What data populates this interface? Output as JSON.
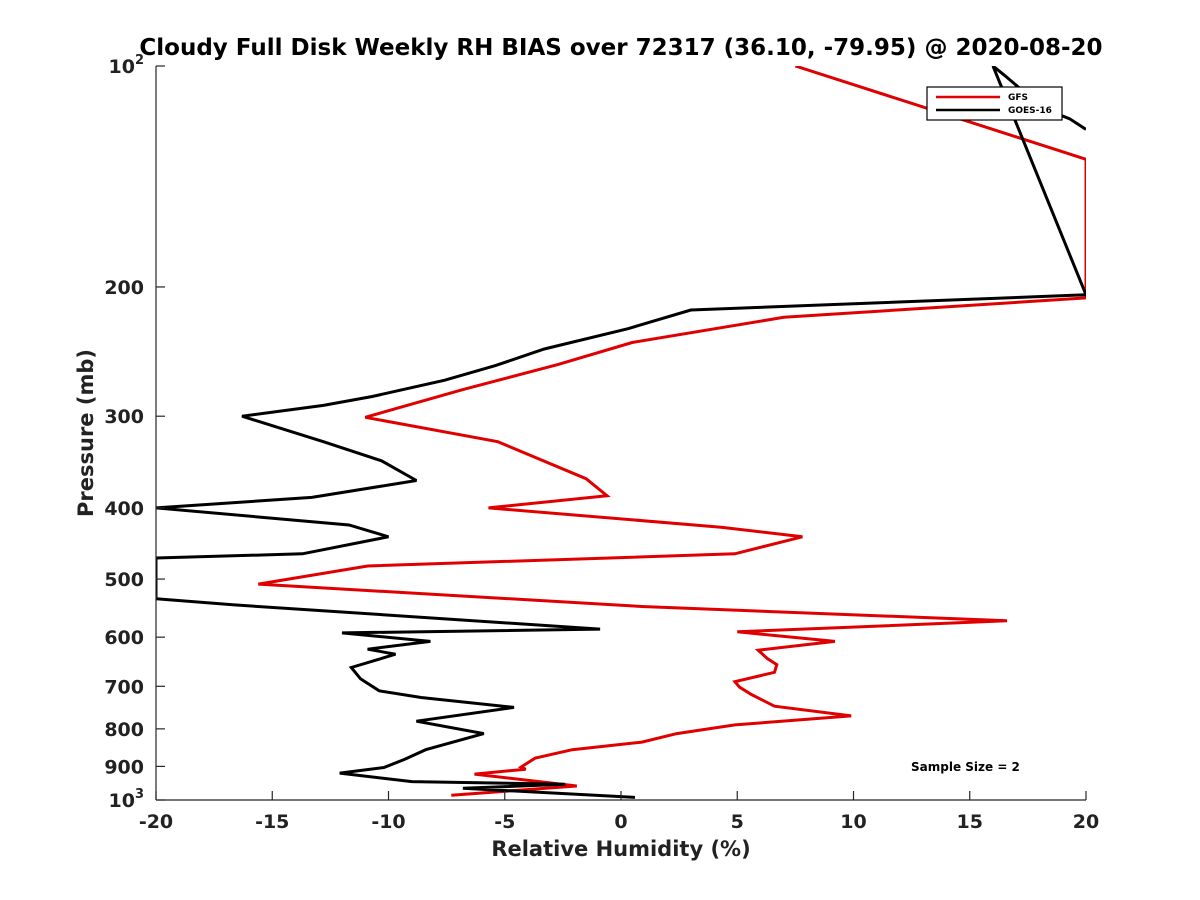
{
  "chart_data": {
    "type": "line",
    "title": "Cloudy Full Disk Weekly RH BIAS over 72317 (36.10, -79.95) @ 2020-08-20",
    "xlabel": "Relative Humidity (%)",
    "ylabel": "Pressure (mb)",
    "xlim": [
      -20,
      20
    ],
    "ylim": [
      100,
      1000
    ],
    "y_scale": "log",
    "y_reversed": true,
    "x_ticks": [
      -20,
      -15,
      -10,
      -5,
      0,
      5,
      10,
      15,
      20
    ],
    "x_tick_labels": [
      "-20",
      "-15",
      "-10",
      "-5",
      "0",
      "5",
      "10",
      "15",
      "20"
    ],
    "y_ticks": [
      100,
      200,
      300,
      400,
      500,
      600,
      700,
      800,
      900,
      1000
    ],
    "y_tick_labels": [
      {
        "base": "10",
        "exp": "2"
      },
      {
        "base": "200",
        "exp": ""
      },
      {
        "base": "300",
        "exp": ""
      },
      {
        "base": "400",
        "exp": ""
      },
      {
        "base": "500",
        "exp": ""
      },
      {
        "base": "600",
        "exp": ""
      },
      {
        "base": "700",
        "exp": ""
      },
      {
        "base": "800",
        "exp": ""
      },
      {
        "base": "900",
        "exp": ""
      },
      {
        "base": "10",
        "exp": "3"
      }
    ],
    "grid": false,
    "legend_position": "top-right",
    "annotation": "Sample Size = 2",
    "series": [
      {
        "name": "GFS",
        "color": "#e00000",
        "points": [
          [
            7.5,
            100
          ],
          [
            18.7,
            130
          ],
          [
            20.0,
            134
          ],
          [
            20.0,
            207
          ],
          [
            7.0,
            220
          ],
          [
            0.5,
            238
          ],
          [
            -2.7,
            255
          ],
          [
            -6.8,
            276
          ],
          [
            -11.0,
            301
          ],
          [
            -5.3,
            325
          ],
          [
            -1.5,
            365
          ],
          [
            -0.6,
            385
          ],
          [
            -5.7,
            400
          ],
          [
            4.3,
            425
          ],
          [
            7.8,
            438
          ],
          [
            4.9,
            462
          ],
          [
            -10.9,
            480
          ],
          [
            -15.6,
            508
          ],
          [
            0.9,
            545
          ],
          [
            16.6,
            570
          ],
          [
            5.0,
            590
          ],
          [
            9.2,
            608
          ],
          [
            5.9,
            625
          ],
          [
            6.3,
            642
          ],
          [
            6.7,
            654
          ],
          [
            6.6,
            670
          ],
          [
            4.9,
            690
          ],
          [
            5.1,
            702
          ],
          [
            5.6,
            718
          ],
          [
            6.6,
            745
          ],
          [
            9.9,
            768
          ],
          [
            4.9,
            790
          ],
          [
            2.4,
            812
          ],
          [
            0.9,
            834
          ],
          [
            -2.1,
            854
          ],
          [
            -3.7,
            877
          ],
          [
            -4.3,
            902
          ],
          [
            -4.1,
            908
          ],
          [
            -6.3,
            922
          ],
          [
            -1.9,
            957
          ],
          [
            -7.3,
            985
          ]
        ]
      },
      {
        "name": "GOES-16",
        "color": "#000000",
        "points": [
          [
            20.0,
            122
          ],
          [
            19.3,
            118
          ],
          [
            18.7,
            116
          ],
          [
            18.0,
            113
          ],
          [
            16.5,
            103
          ],
          [
            16.0,
            100
          ],
          [
            20.0,
            205
          ],
          [
            3.0,
            215
          ],
          [
            0.3,
            228
          ],
          [
            -3.3,
            243
          ],
          [
            -5.4,
            256
          ],
          [
            -7.6,
            268
          ],
          [
            -10.7,
            282
          ],
          [
            -12.8,
            290
          ],
          [
            -16.3,
            300
          ],
          [
            -12.8,
            325
          ],
          [
            -10.3,
            345
          ],
          [
            -8.8,
            367
          ],
          [
            -13.3,
            387
          ],
          [
            -20.0,
            400
          ],
          [
            -11.7,
            422
          ],
          [
            -10.0,
            438
          ],
          [
            -13.7,
            462
          ],
          [
            -20.0,
            468
          ],
          [
            -20.0,
            532
          ],
          [
            -16.7,
            542
          ],
          [
            -0.9,
            585
          ],
          [
            -12.0,
            592
          ],
          [
            -8.2,
            608
          ],
          [
            -10.9,
            623
          ],
          [
            -9.7,
            633
          ],
          [
            -11.6,
            660
          ],
          [
            -11.2,
            684
          ],
          [
            -10.4,
            710
          ],
          [
            -8.6,
            725
          ],
          [
            -4.6,
            748
          ],
          [
            -8.8,
            781
          ],
          [
            -5.9,
            812
          ],
          [
            -8.4,
            854
          ],
          [
            -9.3,
            880
          ],
          [
            -10.2,
            903
          ],
          [
            -12.1,
            919
          ],
          [
            -9.0,
            944
          ],
          [
            -2.4,
            952
          ],
          [
            -6.8,
            964
          ],
          [
            0.6,
            992
          ]
        ]
      }
    ]
  }
}
